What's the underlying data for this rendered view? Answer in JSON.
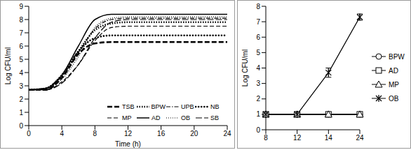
{
  "chart_data": [
    {
      "type": "line",
      "xlabel": "Time (h)",
      "ylabel": "Log CFU/ml",
      "xlim": [
        0,
        24
      ],
      "xticks": [
        0,
        4,
        8,
        12,
        16,
        20,
        24
      ],
      "ylim": [
        0,
        9
      ],
      "yticks": [
        0,
        1,
        2,
        3,
        4,
        5,
        6,
        7,
        8,
        9
      ],
      "legend": "lower right",
      "x": [
        0,
        2,
        4,
        6,
        8,
        10,
        12,
        16,
        20,
        24
      ],
      "series": [
        {
          "name": "TSB",
          "color": "#000000",
          "line_style": "dashed-bold",
          "values": [
            2.7,
            2.7,
            3.6,
            5.4,
            6.2,
            6.3,
            6.3,
            6.3,
            6.3,
            6.3
          ]
        },
        {
          "name": "BPW",
          "color": "#000000",
          "line_style": "dotted-bold",
          "values": [
            2.7,
            2.8,
            3.8,
            5.6,
            7.2,
            7.7,
            7.8,
            7.8,
            7.8,
            7.8
          ]
        },
        {
          "name": "UPB",
          "color": "#000000",
          "line_style": "dash-dot",
          "values": [
            2.7,
            2.8,
            3.7,
            5.5,
            7.3,
            8.0,
            8.1,
            8.1,
            8.1,
            8.1
          ]
        },
        {
          "name": "NB",
          "color": "#000000",
          "line_style": "dotted-round",
          "values": [
            2.7,
            2.8,
            3.8,
            5.6,
            6.6,
            6.8,
            6.8,
            6.8,
            6.8,
            6.8
          ]
        },
        {
          "name": "MP",
          "color": "#000000",
          "line_style": "dashed",
          "values": [
            2.7,
            2.7,
            3.3,
            4.6,
            6.4,
            7.4,
            7.5,
            7.5,
            7.5,
            7.5
          ]
        },
        {
          "name": "AD",
          "color": "#000000",
          "line_style": "solid",
          "values": [
            2.7,
            2.8,
            3.8,
            6.0,
            8.0,
            8.4,
            8.4,
            8.4,
            8.4,
            8.4
          ]
        },
        {
          "name": "OB",
          "color": "#000000",
          "line_style": "dotted",
          "values": [
            2.7,
            2.8,
            3.5,
            5.2,
            7.4,
            8.1,
            8.2,
            8.2,
            8.2,
            8.2
          ]
        },
        {
          "name": "SB",
          "color": "#000000",
          "line_style": "long-dashed",
          "values": [
            2.7,
            2.7,
            3.2,
            4.6,
            6.6,
            7.8,
            8.0,
            8.0,
            8.0,
            8.0
          ]
        }
      ]
    },
    {
      "type": "line",
      "ylabel": "Log CFU/ml",
      "categories": [
        "8",
        "12",
        "14",
        "24"
      ],
      "ylim": [
        0,
        8
      ],
      "yticks": [
        0,
        1,
        2,
        3,
        4,
        5,
        6,
        7,
        8
      ],
      "legend": "right",
      "series": [
        {
          "name": "BPW",
          "color": "#000000",
          "marker": "circle",
          "line_style": "solid",
          "values": [
            1,
            1,
            1,
            1
          ]
        },
        {
          "name": "AD",
          "color": "#000000",
          "marker": "square",
          "line_style": "solid",
          "values": [
            1,
            1,
            1,
            1
          ]
        },
        {
          "name": "MP",
          "color": "#000000",
          "marker": "triangle",
          "line_style": "solid",
          "values": [
            1,
            1,
            1,
            1
          ]
        },
        {
          "name": "OB",
          "color": "#000000",
          "marker": "star",
          "line_style": "solid",
          "values": [
            1,
            1,
            3.7,
            7.3
          ],
          "error": [
            0,
            0,
            0.3,
            0.2
          ]
        }
      ]
    }
  ]
}
